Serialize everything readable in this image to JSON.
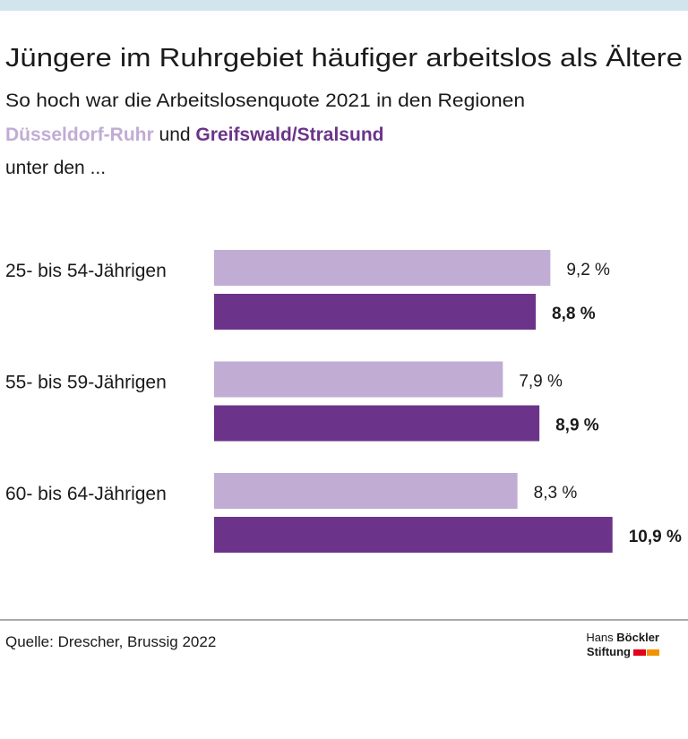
{
  "chart_data": {
    "type": "bar",
    "orientation": "horizontal",
    "title": "Jüngere im Ruhrgebiet häufiger arbeitslos als Ältere",
    "subtitle": "So hoch war die Arbeitslosenquote 2021 in den Regionen",
    "subtitle_connector": "und",
    "subtitle_end": "unter den ...",
    "categories": [
      "25- bis 54-Jährigen",
      "55- bis 59-Jährigen",
      "60- bis 64-Jährigen"
    ],
    "series": [
      {
        "name": "Düsseldorf-Ruhr",
        "color": "#c1acd4",
        "values": [
          9.2,
          7.9,
          8.3
        ],
        "value_labels": [
          "9,2 %",
          "7,9 %",
          "8,3 %"
        ]
      },
      {
        "name": "Greifswald/Stralsund",
        "color": "#6b348a",
        "values": [
          8.8,
          8.9,
          10.9
        ],
        "value_labels": [
          "8,8 %",
          "8,9 %",
          "10,9 %"
        ]
      }
    ],
    "source": "Quelle: Drescher, Brussig 2022",
    "logo": {
      "line1_regular": "Hans",
      "line1_bold": "Böckler",
      "line2": "Stiftung"
    }
  }
}
